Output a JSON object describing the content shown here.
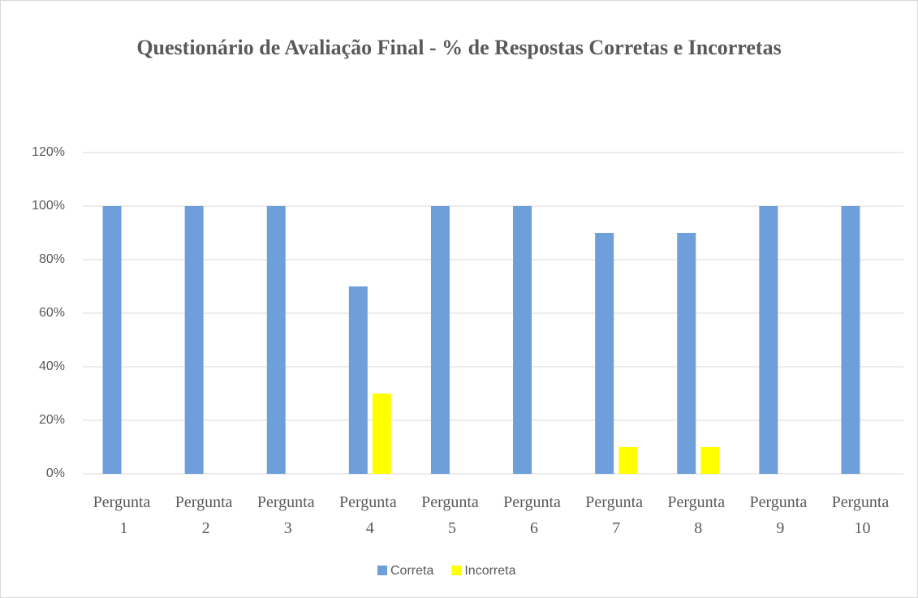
{
  "chart_data": {
    "type": "bar",
    "title": "Questionário de Avaliação Final - % de Respostas Corretas e Incorretas",
    "categories": [
      "Pergunta 1",
      "Pergunta 2",
      "Pergunta 3",
      "Pergunta 4",
      "Pergunta 5",
      "Pergunta 6",
      "Pergunta 7",
      "Pergunta 8",
      "Pergunta 9",
      "Pergunta 10"
    ],
    "series": [
      {
        "name": "Correta",
        "color": "#6f9fdb",
        "values": [
          100,
          100,
          100,
          70,
          100,
          100,
          90,
          90,
          100,
          100
        ]
      },
      {
        "name": "Incorreta",
        "color": "#ffff00",
        "values": [
          0,
          0,
          0,
          30,
          0,
          0,
          10,
          10,
          0,
          0
        ]
      }
    ],
    "ylim": [
      0,
      120
    ],
    "yticks": [
      {
        "value": 0,
        "label": "0%"
      },
      {
        "value": 20,
        "label": "20%"
      },
      {
        "value": 40,
        "label": "40%"
      },
      {
        "value": 60,
        "label": "60%"
      },
      {
        "value": 80,
        "label": "80%"
      },
      {
        "value": 100,
        "label": "100%"
      },
      {
        "value": 120,
        "label": "120%"
      }
    ],
    "grid": true,
    "legend": "bottom"
  }
}
